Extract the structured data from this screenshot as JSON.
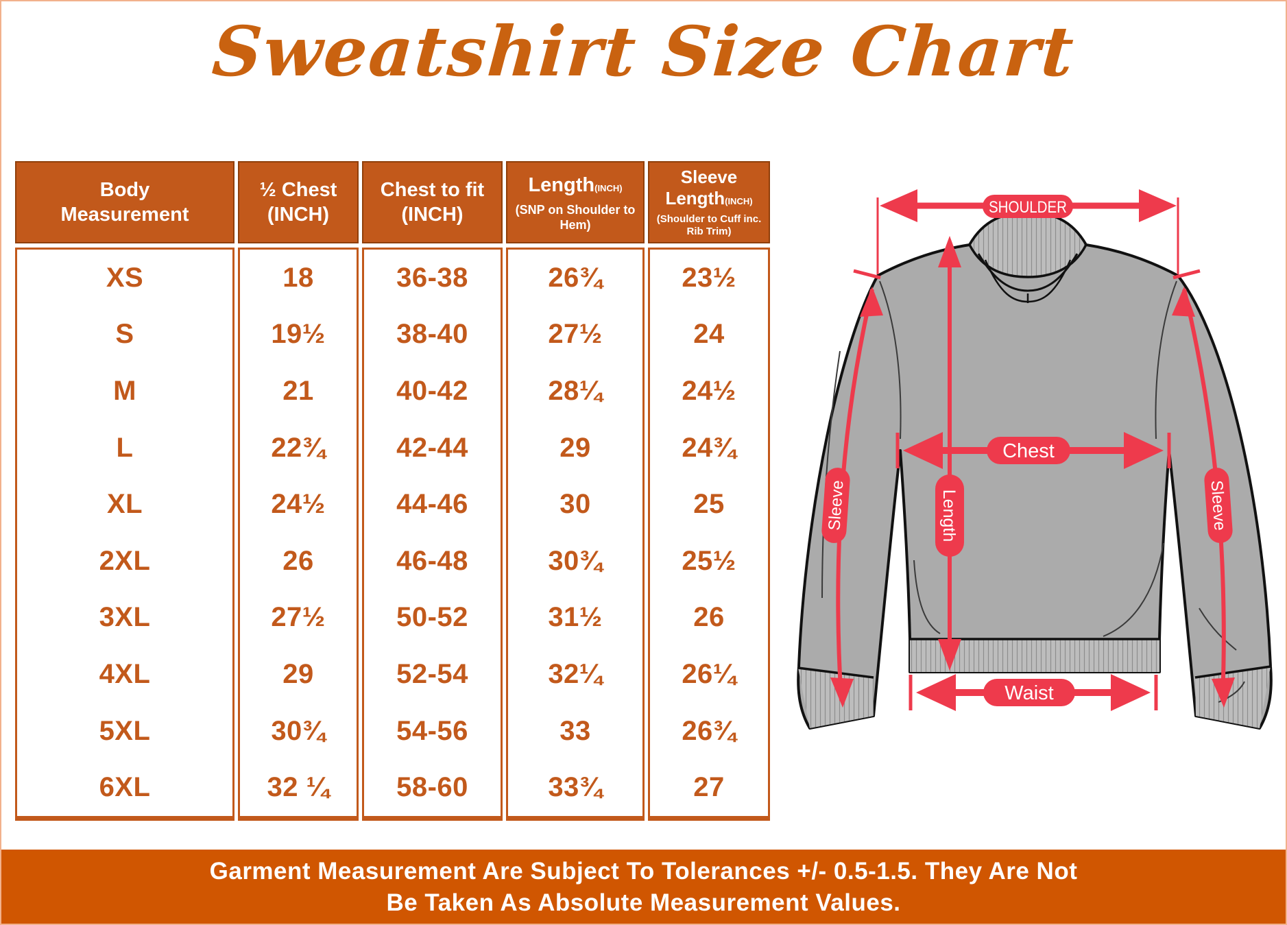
{
  "title": "Sweatshirt Size Chart",
  "colors": {
    "orange": "#c2591b",
    "title_orange": "#c96210",
    "footer_orange": "#d05601",
    "arrow_red": "#ee3a4c",
    "garment_gray": "#ababab",
    "rib_gray": "#bdbdbd",
    "outline": "#111111",
    "page_border": "#f2b18c"
  },
  "table": {
    "columns": [
      {
        "t1": "Body",
        "inch1": "",
        "t2": "Measurement",
        "inch2": "",
        "sub": ""
      },
      {
        "t1": "½ Chest",
        "inch1": "",
        "t2": "(INCH)",
        "inch2": "",
        "sub": ""
      },
      {
        "t1": "Chest to fit",
        "inch1": "",
        "t2": "(INCH)",
        "inch2": "",
        "sub": ""
      },
      {
        "t1": "Length",
        "inch1": "(INCH)",
        "t2": "",
        "inch2": "",
        "sub": "(SNP on Shoulder to Hem)"
      },
      {
        "t1": "Sleeve",
        "inch1": "",
        "t2": "Length",
        "inch2": "(INCH)",
        "sub": "(Shoulder to Cuff inc. Rib Trim)"
      }
    ],
    "rows": [
      {
        "size": "XS",
        "values": [
          "18",
          "36-38",
          "26¾",
          "23½"
        ]
      },
      {
        "size": "S",
        "values": [
          "19½",
          "38-40",
          "27½",
          "24"
        ]
      },
      {
        "size": "M",
        "values": [
          "21",
          "40-42",
          "28¼",
          "24½"
        ]
      },
      {
        "size": "L",
        "values": [
          "22¾",
          "42-44",
          "29",
          "24¾"
        ]
      },
      {
        "size": "XL",
        "values": [
          "24½",
          "44-46",
          "30",
          "25"
        ]
      },
      {
        "size": "2XL",
        "values": [
          "26",
          "46-48",
          "30¾",
          "25½"
        ]
      },
      {
        "size": "3XL",
        "values": [
          "27½",
          "50-52",
          "31½",
          "26"
        ]
      },
      {
        "size": "4XL",
        "values": [
          "29",
          "52-54",
          "32¼",
          "26¼"
        ]
      },
      {
        "size": "5XL",
        "values": [
          "30¾",
          "54-56",
          "33",
          "26¾"
        ]
      },
      {
        "size": "6XL",
        "values": [
          "32 ¼",
          "58-60",
          "33¾",
          "27"
        ]
      }
    ]
  },
  "diagram": {
    "labels": {
      "shoulder": "SHOULDER",
      "chest": "Chest",
      "length": "Length",
      "sleeve_left": "Sleeve",
      "sleeve_right": "Sleeve",
      "waist": "Waist"
    }
  },
  "footer": {
    "line1": "Garment Measurement Are Subject To Tolerances +/- 0.5-1.5. They Are Not",
    "line2": "Be Taken As Absolute Measurement Values."
  }
}
